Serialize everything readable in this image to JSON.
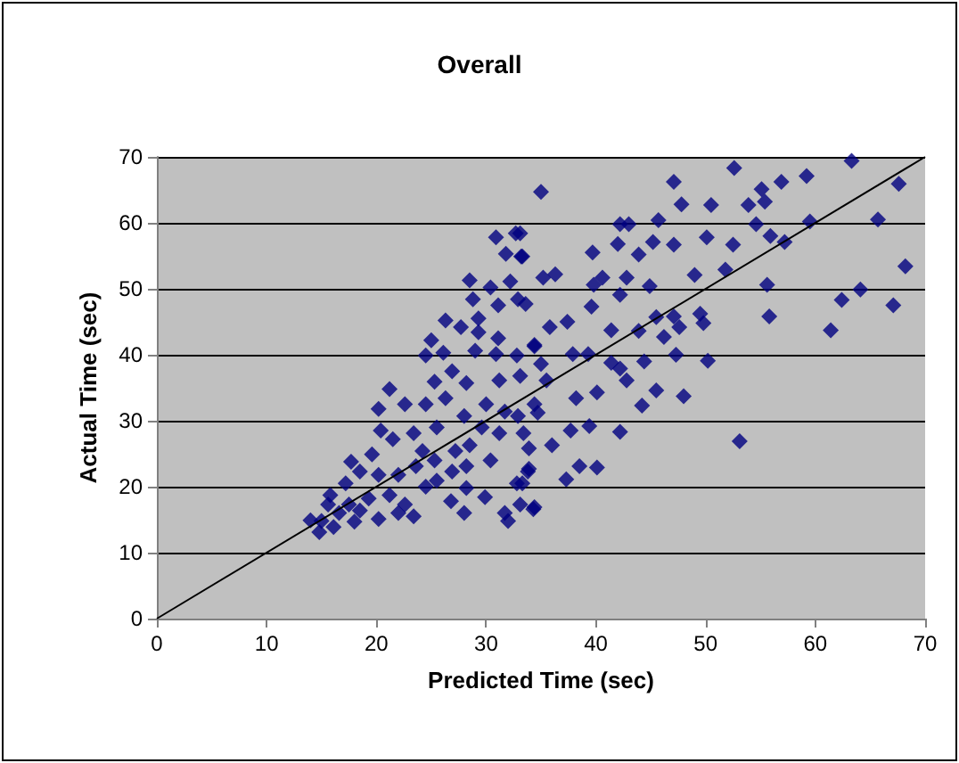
{
  "chart_data": {
    "type": "scatter",
    "title": "Overall",
    "xlabel": "Predicted Time (sec)",
    "ylabel": "Actual Time (sec)",
    "xlim": [
      0,
      70
    ],
    "ylim": [
      0,
      70
    ],
    "xticks": [
      0,
      10,
      20,
      30,
      40,
      50,
      60,
      70
    ],
    "yticks": [
      0,
      10,
      20,
      30,
      40,
      50,
      60,
      70
    ],
    "grid": "y",
    "series": [
      {
        "marker": "diamond",
        "color": "#000080",
        "x": [
          52.6,
          63.3,
          67.6,
          68.2,
          65.7,
          67.1,
          64.1,
          62.4,
          61.4,
          59.2,
          59.5,
          56.9,
          57.2,
          55.9,
          55.6,
          55.8,
          55.1,
          55.4,
          53.9,
          54.6,
          52.5,
          51.8,
          53.1,
          50.5,
          50.1,
          47.1,
          47.8,
          49.0,
          45.7,
          47.1,
          45.2,
          42.2,
          43.0,
          43.9,
          42.0,
          39.7,
          35.0,
          35.2,
          36.3,
          39.8,
          40.6,
          42.8,
          44.9,
          39.6,
          42.2,
          45.5,
          47.1,
          47.6,
          49.5,
          49.8,
          50.2,
          47.3,
          46.2,
          43.9,
          44.4,
          41.4,
          42.2,
          42.8,
          45.5,
          48.0,
          44.2,
          42.2,
          40.1,
          38.2,
          37.9,
          37.4,
          35.8,
          39.3,
          41.4,
          40.1,
          38.5,
          37.3,
          39.4,
          37.7,
          36.0,
          33.9,
          33.8,
          33.3,
          34.3,
          33.1,
          33.1,
          33.3,
          33.6,
          34.4,
          35.5,
          34.4,
          30.9,
          32.7,
          31.8,
          33.2,
          28.5,
          30.4,
          32.2,
          32.9,
          31.1,
          28.8,
          26.3,
          29.3,
          27.7,
          29.3,
          31.1,
          25.0,
          24.5,
          26.1,
          29.0,
          30.9,
          32.8,
          35.0,
          34.4,
          26.9,
          28.2,
          25.3,
          31.2,
          33.1,
          21.2,
          22.6,
          24.5,
          20.2,
          26.3,
          28.0,
          30.0,
          31.7,
          32.9,
          34.7,
          31.2,
          33.4,
          29.6,
          28.5,
          30.4,
          27.2,
          28.2,
          26.9,
          33.9,
          32.8,
          28.2,
          29.9,
          26.8,
          28.0,
          31.7,
          32.0,
          34.4,
          17.7,
          20.4,
          21.5,
          23.4,
          24.2,
          25.5,
          19.6,
          18.5,
          20.2,
          22.0,
          23.6,
          25.3,
          17.2,
          15.8,
          15.6,
          17.5,
          19.3,
          21.2,
          22.6,
          24.5,
          25.5,
          22.0,
          20.2,
          18.0,
          16.1,
          14.8,
          14.0,
          15.0,
          16.6,
          18.5,
          23.4
        ],
        "values": [
          68.3,
          69.4,
          65.9,
          53.4,
          60.5,
          47.5,
          49.9,
          48.3,
          43.7,
          67.1,
          60.2,
          66.2,
          57.1,
          58.0,
          50.6,
          45.8,
          65.1,
          63.2,
          62.7,
          59.8,
          56.7,
          52.9,
          26.9,
          62.7,
          57.8,
          66.2,
          62.8,
          52.1,
          60.4,
          56.7,
          57.1,
          59.8,
          59.8,
          55.2,
          56.8,
          55.5,
          64.7,
          51.7,
          52.2,
          50.6,
          51.7,
          51.7,
          50.4,
          47.3,
          49.1,
          45.7,
          45.8,
          44.2,
          46.2,
          44.8,
          39.1,
          40.0,
          42.7,
          43.6,
          39.0,
          43.7,
          37.9,
          36.1,
          34.6,
          33.7,
          32.3,
          28.3,
          34.3,
          33.4,
          40.1,
          45.0,
          44.2,
          40.1,
          38.8,
          22.9,
          23.1,
          21.1,
          29.2,
          28.5,
          26.3,
          25.8,
          22.3,
          20.5,
          16.6,
          17.3,
          58.4,
          54.9,
          47.7,
          41.5,
          36.1,
          32.5,
          57.8,
          58.4,
          55.3,
          54.9,
          51.3,
          50.2,
          51.1,
          48.4,
          47.5,
          48.4,
          45.2,
          45.5,
          44.2,
          43.4,
          42.5,
          42.2,
          39.9,
          40.3,
          40.6,
          40.1,
          39.9,
          38.6,
          41.3,
          37.5,
          35.7,
          35.9,
          36.1,
          36.8,
          34.8,
          32.5,
          32.5,
          31.8,
          33.4,
          30.7,
          32.5,
          31.4,
          30.7,
          31.2,
          28.1,
          28.1,
          29.0,
          26.3,
          24.0,
          25.4,
          23.1,
          22.3,
          22.7,
          20.5,
          19.8,
          18.4,
          17.8,
          16.0,
          16.0,
          14.8,
          16.9,
          23.8,
          28.5,
          27.2,
          28.1,
          25.4,
          29.0,
          24.9,
          22.3,
          21.8,
          21.8,
          23.1,
          24.0,
          20.5,
          18.7,
          17.3,
          17.3,
          18.2,
          18.7,
          17.3,
          20.0,
          20.9,
          16.0,
          15.1,
          14.7,
          13.9,
          13.1,
          14.9,
          14.8,
          16.0,
          16.4,
          15.5
        ]
      },
      {
        "type": "line",
        "marker": "none",
        "color": "#000000",
        "x": [
          0,
          70
        ],
        "values": [
          0,
          70
        ]
      }
    ]
  }
}
